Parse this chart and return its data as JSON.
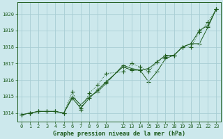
{
  "title": "Graphe pression niveau de la mer (hPa)",
  "bg_color": "#cce8ec",
  "grid_color": "#a8cdd4",
  "line_color": "#1e5c1e",
  "xlim": [
    -0.5,
    23.5
  ],
  "ylim": [
    1013.5,
    1020.7
  ],
  "yticks": [
    1014,
    1015,
    1016,
    1017,
    1018,
    1019,
    1020
  ],
  "xticks": [
    0,
    1,
    2,
    3,
    4,
    5,
    6,
    7,
    8,
    9,
    10,
    12,
    13,
    14,
    15,
    16,
    17,
    18,
    19,
    20,
    21,
    22,
    23
  ],
  "xtick_labels": [
    "0",
    "1",
    "2",
    "3",
    "4",
    "5",
    "6",
    "7",
    "8",
    "9",
    "10",
    "12",
    "13",
    "14",
    "15",
    "16",
    "17",
    "18",
    "19",
    "20",
    "21",
    "22",
    "23"
  ],
  "line1_x": [
    0,
    1,
    2,
    3,
    4,
    5,
    6,
    7,
    8,
    9,
    10,
    12,
    13,
    14,
    15,
    16,
    17,
    18,
    19,
    20,
    21,
    22,
    23
  ],
  "line1_y": [
    1013.9,
    1014.0,
    1014.1,
    1014.1,
    1014.1,
    1014.0,
    1014.9,
    1014.3,
    1014.9,
    1015.4,
    1015.9,
    1016.8,
    1016.6,
    1016.6,
    1016.7,
    1017.1,
    1017.5,
    1017.5,
    1018.0,
    1018.2,
    1019.0,
    1019.3,
    1020.3
  ],
  "line2_x": [
    0,
    1,
    2,
    3,
    4,
    5,
    6,
    7,
    8,
    9,
    10,
    12,
    13,
    14,
    15,
    16,
    17,
    18,
    19,
    20,
    21,
    22,
    23
  ],
  "line2_y": [
    1013.9,
    1014.0,
    1014.1,
    1014.1,
    1014.1,
    1014.0,
    1015.3,
    1014.2,
    1015.2,
    1015.7,
    1016.4,
    1016.5,
    1017.0,
    1016.8,
    1016.5,
    1017.1,
    1017.4,
    1017.5,
    1018.0,
    1018.0,
    1018.9,
    1019.5,
    1020.3
  ],
  "line3_x": [
    0,
    1,
    2,
    3,
    4,
    5,
    6,
    7,
    8,
    9,
    10,
    12,
    13,
    14,
    15,
    16,
    17,
    18,
    19,
    20,
    21,
    22,
    23
  ],
  "line3_y": [
    1013.9,
    1014.0,
    1014.1,
    1014.1,
    1014.1,
    1014.0,
    1015.0,
    1014.5,
    1015.0,
    1015.3,
    1015.8,
    1016.9,
    1016.7,
    1016.6,
    1015.9,
    1016.5,
    1017.3,
    1017.5,
    1018.0,
    1018.2,
    1018.2,
    1019.2,
    1020.3
  ]
}
